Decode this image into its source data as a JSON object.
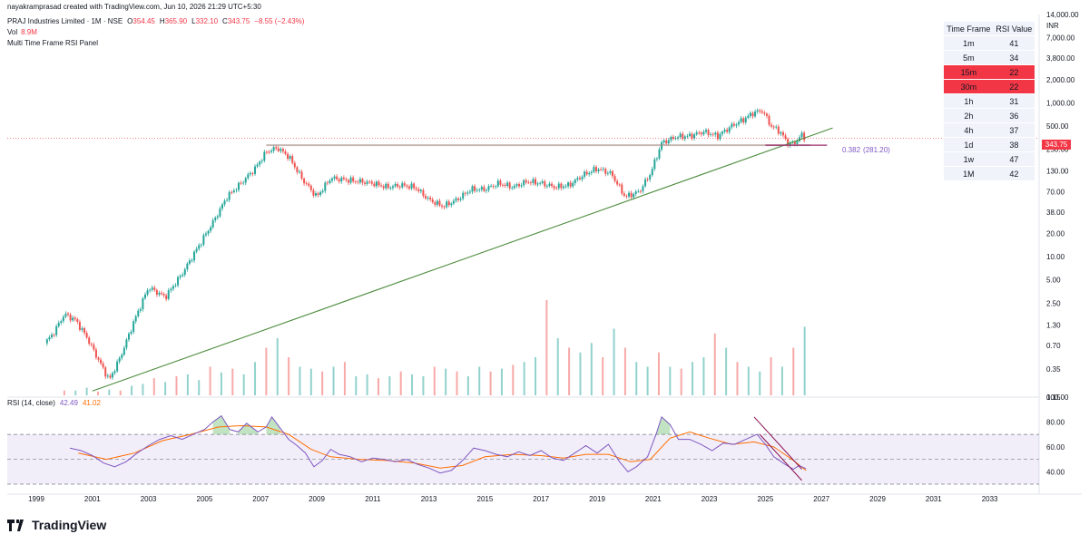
{
  "header": {
    "author_line": "nayakramprasad created with TradingView.com, Jun 10, 2026 21:29 UTC+5:30",
    "symbol": "PRAJ Industries Limited · 1M · NSE",
    "ohlc": [
      {
        "label": "O",
        "value": "354.45"
      },
      {
        "label": "H",
        "value": "365.90"
      },
      {
        "label": "L",
        "value": "332.10"
      },
      {
        "label": "C",
        "value": "343.75"
      }
    ],
    "change": "−8.55 (−2.43%)",
    "volume_label": "Vol",
    "volume_value": "8.9M",
    "indicator_name": "Multi Time Frame RSI Panel"
  },
  "currency": "INR",
  "last_price_label": "343.75",
  "fib": {
    "ratio": "0.382",
    "price": "(281.20)"
  },
  "rsi_legend": {
    "label": "RSI (14, close)",
    "rsi": "42.49",
    "ma": "41.02"
  },
  "rsi_table": {
    "headers": [
      "Time Frame",
      "RSI Value"
    ],
    "rows": [
      {
        "tf": "1m",
        "value": "41",
        "hot": false
      },
      {
        "tf": "5m",
        "value": "34",
        "hot": false
      },
      {
        "tf": "15m",
        "value": "22",
        "hot": true
      },
      {
        "tf": "30m",
        "value": "22",
        "hot": true
      },
      {
        "tf": "1h",
        "value": "31",
        "hot": false
      },
      {
        "tf": "2h",
        "value": "36",
        "hot": false
      },
      {
        "tf": "4h",
        "value": "37",
        "hot": false
      },
      {
        "tf": "1d",
        "value": "38",
        "hot": false
      },
      {
        "tf": "1w",
        "value": "47",
        "hot": false
      },
      {
        "tf": "1M",
        "value": "42",
        "hot": false
      }
    ]
  },
  "brand": {
    "name": "TradingView",
    "icon": "tradingview-logo-icon"
  },
  "colors": {
    "up": "#26a69a",
    "down": "#ef5350",
    "rsi": "#7e57c2",
    "rsi_ma": "#ff6d00",
    "trendline": "#4c8c3c",
    "fib_line": "#9c2d6b",
    "hot_row": "#f23645"
  },
  "chart_data": [
    {
      "type": "candlestick",
      "scale": "log",
      "x_ticks": [
        "1999",
        "2001",
        "2003",
        "2005",
        "2007",
        "2009",
        "2011",
        "2013",
        "2015",
        "2017",
        "2019",
        "2021",
        "2023",
        "2025",
        "2027",
        "2029",
        "2031",
        "2033"
      ],
      "y_ticks": [
        "0.15",
        "0.35",
        "0.70",
        "1.30",
        "2.50",
        "5.00",
        "10.00",
        "20.00",
        "38.00",
        "70.00",
        "130.00",
        "250.00",
        "500.00",
        "1,000.00",
        "2,000.00",
        "3,800.00",
        "7,000.00",
        "14,000.00"
      ],
      "price_path": [
        [
          1999.3,
          0.75
        ],
        [
          1999.6,
          1.0
        ],
        [
          2000.0,
          1.8
        ],
        [
          2000.4,
          1.5
        ],
        [
          2000.8,
          0.9
        ],
        [
          2001.3,
          0.4
        ],
        [
          2001.6,
          0.25
        ],
        [
          2002.0,
          0.5
        ],
        [
          2002.5,
          1.5
        ],
        [
          2003.0,
          4.0
        ],
        [
          2003.6,
          3.0
        ],
        [
          2004.2,
          6.0
        ],
        [
          2004.8,
          14
        ],
        [
          2005.3,
          28
        ],
        [
          2005.8,
          60
        ],
        [
          2006.3,
          90
        ],
        [
          2006.8,
          140
        ],
        [
          2007.2,
          230
        ],
        [
          2007.6,
          260
        ],
        [
          2008.0,
          200
        ],
        [
          2008.5,
          100
        ],
        [
          2009.0,
          60
        ],
        [
          2009.5,
          105
        ],
        [
          2010.0,
          100
        ],
        [
          2010.5,
          95
        ],
        [
          2011.0,
          90
        ],
        [
          2011.5,
          80
        ],
        [
          2012.0,
          85
        ],
        [
          2012.5,
          80
        ],
        [
          2013.0,
          55
        ],
        [
          2013.5,
          45
        ],
        [
          2014.0,
          55
        ],
        [
          2014.5,
          75
        ],
        [
          2015.0,
          75
        ],
        [
          2015.5,
          90
        ],
        [
          2016.0,
          80
        ],
        [
          2016.5,
          95
        ],
        [
          2017.0,
          90
        ],
        [
          2017.5,
          80
        ],
        [
          2018.0,
          85
        ],
        [
          2018.5,
          115
        ],
        [
          2019.0,
          140
        ],
        [
          2019.5,
          120
        ],
        [
          2020.0,
          60
        ],
        [
          2020.5,
          70
        ],
        [
          2020.9,
          120
        ],
        [
          2021.3,
          300
        ],
        [
          2021.8,
          360
        ],
        [
          2022.3,
          370
        ],
        [
          2022.8,
          420
        ],
        [
          2023.3,
          370
        ],
        [
          2023.8,
          500
        ],
        [
          2024.2,
          600
        ],
        [
          2024.6,
          750
        ],
        [
          2024.9,
          790
        ],
        [
          2025.2,
          500
        ],
        [
          2025.5,
          430
        ],
        [
          2025.8,
          300
        ],
        [
          2026.0,
          290
        ],
        [
          2026.3,
          380
        ],
        [
          2026.45,
          343.75
        ]
      ],
      "annotations": {
        "fib_level": 281.2,
        "trendline": [
          [
            2001.0,
            0.18
          ],
          [
            2027.4,
            470
          ]
        ]
      }
    },
    {
      "type": "bar",
      "name": "Vol",
      "relative_heights": [
        0.05,
        0.05,
        0.08,
        0.04,
        0.06,
        0.05,
        0.1,
        0.12,
        0.18,
        0.14,
        0.2,
        0.22,
        0.16,
        0.3,
        0.24,
        0.28,
        0.22,
        0.35,
        0.5,
        0.6,
        0.4,
        0.3,
        0.28,
        0.25,
        0.3,
        0.35,
        0.2,
        0.22,
        0.18,
        0.2,
        0.25,
        0.22,
        0.2,
        0.3,
        0.28,
        0.25,
        0.2,
        0.3,
        0.25,
        0.28,
        0.32,
        0.35,
        0.4,
        1.0,
        0.6,
        0.5,
        0.45,
        0.55,
        0.4,
        0.7,
        0.5,
        0.35,
        0.3,
        0.45,
        0.3,
        0.28,
        0.35,
        0.4,
        0.65,
        0.5,
        0.35,
        0.3,
        0.25,
        0.4,
        0.3,
        0.5,
        0.72
      ]
    },
    {
      "type": "line",
      "name": "RSI (14, close)",
      "y_ticks": [
        "40.00",
        "60.00",
        "80.00",
        "100.00"
      ],
      "ylim": [
        30,
        100
      ],
      "bands": {
        "upper": 70,
        "middle": 50,
        "lower": 30
      },
      "rsi": [
        [
          2000.2,
          59
        ],
        [
          2000.6,
          57
        ],
        [
          2001.0,
          53
        ],
        [
          2001.4,
          47
        ],
        [
          2001.8,
          44
        ],
        [
          2002.2,
          48
        ],
        [
          2002.6,
          55
        ],
        [
          2003.0,
          61
        ],
        [
          2003.4,
          66
        ],
        [
          2003.8,
          69
        ],
        [
          2004.2,
          66
        ],
        [
          2004.6,
          70
        ],
        [
          2005.0,
          74
        ],
        [
          2005.3,
          80
        ],
        [
          2005.6,
          85
        ],
        [
          2005.9,
          74
        ],
        [
          2006.2,
          72
        ],
        [
          2006.5,
          79
        ],
        [
          2006.9,
          72
        ],
        [
          2007.2,
          76
        ],
        [
          2007.4,
          84
        ],
        [
          2007.7,
          75
        ],
        [
          2008.0,
          66
        ],
        [
          2008.3,
          61
        ],
        [
          2008.6,
          55
        ],
        [
          2008.9,
          44
        ],
        [
          2009.2,
          49
        ],
        [
          2009.5,
          58
        ],
        [
          2009.8,
          54
        ],
        [
          2010.2,
          52
        ],
        [
          2010.6,
          48
        ],
        [
          2011.0,
          51
        ],
        [
          2011.4,
          50
        ],
        [
          2011.8,
          48
        ],
        [
          2012.2,
          50
        ],
        [
          2012.6,
          46
        ],
        [
          2013.0,
          43
        ],
        [
          2013.4,
          39
        ],
        [
          2013.8,
          41
        ],
        [
          2014.2,
          49
        ],
        [
          2014.6,
          59
        ],
        [
          2015.0,
          57
        ],
        [
          2015.4,
          54
        ],
        [
          2015.8,
          52
        ],
        [
          2016.2,
          56
        ],
        [
          2016.6,
          53
        ],
        [
          2017.0,
          57
        ],
        [
          2017.4,
          51
        ],
        [
          2017.8,
          49
        ],
        [
          2018.2,
          55
        ],
        [
          2018.6,
          61
        ],
        [
          2019.0,
          55
        ],
        [
          2019.4,
          62
        ],
        [
          2019.8,
          48
        ],
        [
          2020.1,
          40
        ],
        [
          2020.4,
          44
        ],
        [
          2020.8,
          52
        ],
        [
          2021.1,
          70
        ],
        [
          2021.3,
          84
        ],
        [
          2021.6,
          78
        ],
        [
          2021.9,
          66
        ],
        [
          2022.3,
          66
        ],
        [
          2022.7,
          62
        ],
        [
          2023.1,
          57
        ],
        [
          2023.5,
          63
        ],
        [
          2023.9,
          62
        ],
        [
          2024.3,
          66
        ],
        [
          2024.7,
          70
        ],
        [
          2025.0,
          62
        ],
        [
          2025.3,
          52
        ],
        [
          2025.7,
          46
        ],
        [
          2026.0,
          42
        ],
        [
          2026.2,
          45
        ],
        [
          2026.45,
          42.49
        ]
      ],
      "rsi_ma": [
        [
          2000.5,
          55
        ],
        [
          2001.5,
          50
        ],
        [
          2002.5,
          55
        ],
        [
          2003.5,
          65
        ],
        [
          2004.5,
          70
        ],
        [
          2005.5,
          76
        ],
        [
          2006.3,
          77
        ],
        [
          2007.2,
          76
        ],
        [
          2008.0,
          70
        ],
        [
          2008.8,
          58
        ],
        [
          2009.5,
          52
        ],
        [
          2010.5,
          50
        ],
        [
          2011.5,
          49
        ],
        [
          2012.5,
          47
        ],
        [
          2013.4,
          43
        ],
        [
          2014.2,
          45
        ],
        [
          2015.0,
          52
        ],
        [
          2016.0,
          54
        ],
        [
          2017.0,
          53
        ],
        [
          2017.8,
          51
        ],
        [
          2018.6,
          54
        ],
        [
          2019.4,
          54
        ],
        [
          2020.2,
          48
        ],
        [
          2020.9,
          50
        ],
        [
          2021.6,
          67
        ],
        [
          2022.3,
          72
        ],
        [
          2023.0,
          67
        ],
        [
          2023.8,
          62
        ],
        [
          2024.6,
          64
        ],
        [
          2025.3,
          60
        ],
        [
          2026.0,
          49
        ],
        [
          2026.45,
          41.02
        ]
      ]
    }
  ]
}
